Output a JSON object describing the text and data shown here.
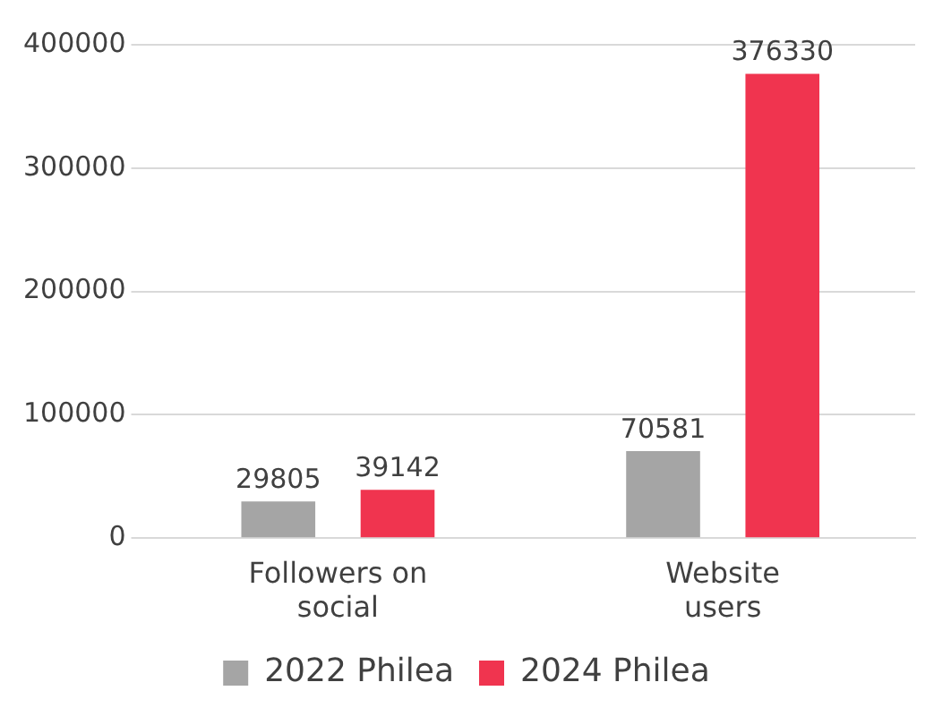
{
  "chart_data": {
    "type": "bar",
    "categories": [
      "Followers on social",
      "Website users"
    ],
    "series": [
      {
        "name": "2022 Philea",
        "color": "#a5a5a5",
        "values": [
          29805,
          70581
        ]
      },
      {
        "name": "2024 Philea",
        "color": "#f0344f",
        "values": [
          39142,
          376330
        ]
      }
    ],
    "ylim": [
      0,
      400000
    ],
    "yticks": [
      0,
      100000,
      200000,
      300000,
      400000
    ],
    "grid": "y",
    "legend": "bottom",
    "data_labels": true
  }
}
